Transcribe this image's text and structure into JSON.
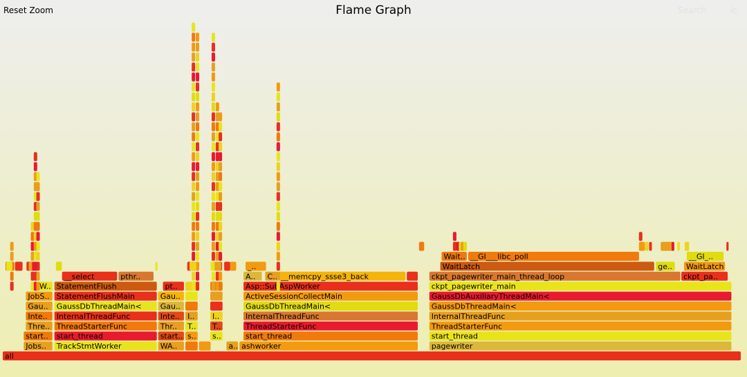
{
  "header": {
    "reset_zoom": "Reset Zoom",
    "title": "Flame Graph",
    "search": "Search",
    "ic": "ic"
  },
  "colors": {
    "bg_top": "#eeeeee",
    "bg_bottom": "#eeeeb0",
    "palette": [
      "#e8301c",
      "#f07a0c",
      "#e6a020",
      "#e8e41c",
      "#dcb83a",
      "#f29a10",
      "#e04a1a",
      "#eed21e",
      "#d87830",
      "#e0dc10",
      "#f5b40a",
      "#e81a30",
      "#cc5a10"
    ]
  },
  "chart_data": {
    "type": "flamegraph",
    "title": "Flame Graph",
    "unit": "fraction of total samples (x = start, w = width), depth 0 = bottom",
    "frames": [
      {
        "name": "all",
        "label": "all",
        "depth": 0,
        "x": 0.0,
        "w": 1.0,
        "c": 0
      },
      {
        "name": "JobScheduleWorker",
        "label": "Jobs..",
        "depth": 1,
        "x": 0.0284,
        "w": 0.0388,
        "c": 2
      },
      {
        "name": "TrackStmtWorker",
        "label": "TrackStmtWorker",
        "depth": 1,
        "x": 0.07,
        "w": 0.1387,
        "c": 3
      },
      {
        "name": "WALWriter",
        "label": "WA..",
        "depth": 1,
        "x": 0.2106,
        "w": 0.0349,
        "c": 2
      },
      {
        "name": "s",
        "label": "",
        "depth": 1,
        "x": 0.2475,
        "w": 0.0166,
        "c": 1
      },
      {
        "name": "s2",
        "label": "",
        "depth": 1,
        "x": 0.2659,
        "w": 0.0157,
        "c": 5
      },
      {
        "name": "a",
        "label": "a..",
        "depth": 1,
        "x": 0.3031,
        "w": 0.0157,
        "c": 2
      },
      {
        "name": "ashworker",
        "label": "ashworker",
        "depth": 1,
        "x": 0.3207,
        "w": 0.2416,
        "c": 5
      },
      {
        "name": "pagewriter",
        "label": "pagewriter",
        "depth": 1,
        "x": 0.578,
        "w": 0.4093,
        "c": 4
      },
      {
        "name": "start_thread_a",
        "label": "start..",
        "depth": 2,
        "x": 0.0284,
        "w": 0.0388,
        "c": 1
      },
      {
        "name": "start_thread_b",
        "label": "start_thread",
        "depth": 2,
        "x": 0.07,
        "w": 0.1387,
        "c": 11
      },
      {
        "name": "start_thread_c",
        "label": "start..",
        "depth": 2,
        "x": 0.2106,
        "w": 0.0349,
        "c": 6
      },
      {
        "name": "start_thread_d",
        "label": "s..",
        "depth": 2,
        "x": 0.2475,
        "w": 0.0166,
        "c": 5
      },
      {
        "name": "start_thread_e",
        "label": "s..",
        "depth": 2,
        "x": 0.2812,
        "w": 0.0166,
        "c": 3
      },
      {
        "name": "start_thread_f",
        "label": "start_thread",
        "depth": 2,
        "x": 0.3262,
        "w": 0.2361,
        "c": 1
      },
      {
        "name": "start_thread_g",
        "label": "start_thread",
        "depth": 2,
        "x": 0.578,
        "w": 0.4093,
        "c": 3
      },
      {
        "name": "ThreadStarterFunc_a",
        "label": "Thre..",
        "depth": 3,
        "x": 0.0313,
        "w": 0.0359,
        "c": 2
      },
      {
        "name": "ThreadStarterFunc_b",
        "label": "ThreadStarterFunc",
        "depth": 3,
        "x": 0.07,
        "w": 0.1387,
        "c": 1
      },
      {
        "name": "ThreadStarterFunc_c",
        "label": "Thr..",
        "depth": 3,
        "x": 0.2106,
        "w": 0.0349,
        "c": 2
      },
      {
        "name": "ThreadStarterFunc_d",
        "label": "T..",
        "depth": 3,
        "x": 0.2475,
        "w": 0.0166,
        "c": 3
      },
      {
        "name": "ThreadStarterFunc_e",
        "label": "T..",
        "depth": 3,
        "x": 0.2812,
        "w": 0.0166,
        "c": 6
      },
      {
        "name": "ThreadStarterFunc_f",
        "label": "ThreadStarterFunc",
        "depth": 3,
        "x": 0.3262,
        "w": 0.2361,
        "c": 11
      },
      {
        "name": "ThreadStarterFunc_g",
        "label": "ThreadStarterFunc",
        "depth": 3,
        "x": 0.578,
        "w": 0.4093,
        "c": 5
      },
      {
        "name": "InternalThreadFunc_a",
        "label": "Inte..",
        "depth": 4,
        "x": 0.0313,
        "w": 0.0359,
        "c": 1
      },
      {
        "name": "InternalThreadFunc_b",
        "label": "InternalThreadFunc",
        "depth": 4,
        "x": 0.07,
        "w": 0.1387,
        "c": 0
      },
      {
        "name": "InternalThreadFunc_c",
        "label": "Inte..",
        "depth": 4,
        "x": 0.2106,
        "w": 0.0349,
        "c": 6
      },
      {
        "name": "InternalThreadFunc_d",
        "label": "I..",
        "depth": 4,
        "x": 0.2475,
        "w": 0.0166,
        "c": 2
      },
      {
        "name": "InternalThreadFunc_e",
        "label": "I..",
        "depth": 4,
        "x": 0.2812,
        "w": 0.0166,
        "c": 7
      },
      {
        "name": "InternalThreadFunc_f",
        "label": "InternalThreadFunc",
        "depth": 4,
        "x": 0.3262,
        "w": 0.2361,
        "c": 8
      },
      {
        "name": "InternalThreadFunc_g",
        "label": "InternalThreadFunc",
        "depth": 4,
        "x": 0.578,
        "w": 0.4093,
        "c": 2
      },
      {
        "name": "GaussDbThreadMain_a",
        "label": "Gau..",
        "depth": 5,
        "x": 0.0313,
        "w": 0.0359,
        "c": 2
      },
      {
        "name": "GaussDbThreadMain_b",
        "label": "GaussDbThreadMain<",
        "depth": 5,
        "x": 0.07,
        "w": 0.1387,
        "c": 3
      },
      {
        "name": "GaussDbThreadMain_c",
        "label": "Gau..",
        "depth": 5,
        "x": 0.2106,
        "w": 0.0349,
        "c": 4
      },
      {
        "name": "GaussDbThreadMain_d",
        "label": "",
        "depth": 5,
        "x": 0.2475,
        "w": 0.0166,
        "c": 1
      },
      {
        "name": "GaussDbThreadMain_e",
        "label": "",
        "depth": 5,
        "x": 0.2812,
        "w": 0.0166,
        "c": 0
      },
      {
        "name": "GaussDbThreadMain_f",
        "label": "GaussDbThreadMain<",
        "depth": 5,
        "x": 0.3262,
        "w": 0.2361,
        "c": 9
      },
      {
        "name": "GaussDbThreadMain_g",
        "label": "GaussDbThreadMain<",
        "depth": 5,
        "x": 0.578,
        "w": 0.4093,
        "c": 5
      },
      {
        "name": "JobScheduleMain",
        "label": "JobS..",
        "depth": 6,
        "x": 0.0313,
        "w": 0.0359,
        "c": 5
      },
      {
        "name": "StatementFlushMain",
        "label": "StatementFlushMain",
        "depth": 6,
        "x": 0.07,
        "w": 0.1387,
        "c": 0
      },
      {
        "name": "WalWriterMain",
        "label": "Gau..",
        "depth": 6,
        "x": 0.2106,
        "w": 0.0349,
        "c": 10
      },
      {
        "name": "d6_s",
        "label": "",
        "depth": 6,
        "x": 0.2475,
        "w": 0.0166,
        "c": 3
      },
      {
        "name": "d6_t",
        "label": "",
        "depth": 6,
        "x": 0.2812,
        "w": 0.0166,
        "c": 2
      },
      {
        "name": "ActiveSessionCollectMain",
        "label": "ActiveSessionCollectMain",
        "depth": 6,
        "x": 0.3262,
        "w": 0.2361,
        "c": 5
      },
      {
        "name": "GaussDbAuxiliaryThreadMain",
        "label": "GaussDbAuxiliaryThreadMain<",
        "depth": 6,
        "x": 0.578,
        "w": 0.4093,
        "c": 11
      },
      {
        "name": "W",
        "label": "W..",
        "depth": 7,
        "x": 0.0469,
        "w": 0.0203,
        "c": 3
      },
      {
        "name": "StatementFlush",
        "label": "StatementFlush",
        "depth": 7,
        "x": 0.07,
        "w": 0.1387,
        "c": 12
      },
      {
        "name": "pt",
        "label": "pt..",
        "depth": 7,
        "x": 0.217,
        "w": 0.0285,
        "c": 0
      },
      {
        "name": "d7_a",
        "label": "",
        "depth": 7,
        "x": 0.2475,
        "w": 0.0166,
        "c": 7
      },
      {
        "name": "d7_b",
        "label": "",
        "depth": 7,
        "x": 0.2812,
        "w": 0.0166,
        "c": 1
      },
      {
        "name": "AspSubAspWorker",
        "label": "Asp::SubAspWorker",
        "depth": 7,
        "x": 0.3262,
        "w": 0.2361,
        "c": 0
      },
      {
        "name": "ckpt_pagewriter_main",
        "label": "ckpt_pagewriter_main",
        "depth": 7,
        "x": 0.578,
        "w": 0.4093,
        "c": 3
      },
      {
        "name": "__select",
        "label": "__select",
        "depth": 8,
        "x": 0.0803,
        "w": 0.0746,
        "c": 0
      },
      {
        "name": "pthr",
        "label": "pthr..",
        "depth": 8,
        "x": 0.1568,
        "w": 0.0475,
        "c": 8
      },
      {
        "name": "A",
        "label": "A..",
        "depth": 8,
        "x": 0.3262,
        "w": 0.0248,
        "c": 4
      },
      {
        "name": "C",
        "label": "C..",
        "depth": 8,
        "x": 0.3557,
        "w": 0.0165,
        "c": 2
      },
      {
        "name": "__memcpy_ssse3_back",
        "label": "__memcpy_ssse3_back",
        "depth": 8,
        "x": 0.374,
        "w": 0.1716,
        "c": 10
      },
      {
        "name": "d8_red",
        "label": "",
        "depth": 8,
        "x": 0.5475,
        "w": 0.0148,
        "c": 0
      },
      {
        "name": "ckpt_pagewriter_main_thread_loop",
        "label": "ckpt_pagewriter_main_thread_loop",
        "depth": 8,
        "x": 0.578,
        "w": 0.3402,
        "c": 8
      },
      {
        "name": "ckpt_pa",
        "label": "ckpt_pa..",
        "depth": 8,
        "x": 0.9194,
        "w": 0.0629,
        "c": 0
      },
      {
        "name": "underscore",
        "label": "_..",
        "depth": 9,
        "x": 0.329,
        "w": 0.0277,
        "c": 5
      },
      {
        "name": "WaitLatch_a",
        "label": "WaitLatch",
        "depth": 9,
        "x": 0.5928,
        "w": 0.2899,
        "c": 12
      },
      {
        "name": "ge",
        "label": "ge..",
        "depth": 9,
        "x": 0.885,
        "w": 0.0256,
        "c": 9
      },
      {
        "name": "WaitLatch_b",
        "label": "WaitLatch",
        "depth": 9,
        "x": 0.9231,
        "w": 0.0555,
        "c": 5
      },
      {
        "name": "Wait",
        "label": "Wait..",
        "depth": 10,
        "x": 0.5946,
        "w": 0.0341,
        "c": 1
      },
      {
        "name": "__GI___libc_poll",
        "label": "__GI___libc_poll",
        "depth": 10,
        "x": 0.6307,
        "w": 0.2314,
        "c": 1
      },
      {
        "name": "__GI",
        "label": "__GI_..",
        "depth": 10,
        "x": 0.9268,
        "w": 0.0499,
        "c": 9
      }
    ],
    "tiny_boxes": [
      [
        0.0037,
        0.012,
        1
      ],
      [
        0.0166,
        0.0102,
        0
      ],
      [
        0.0046,
        0.0084,
        3
      ],
      [
        0.0321,
        0.0102,
        0
      ],
      [
        0.0351,
        0.0074,
        2
      ],
      [
        0.0397,
        0.0074,
        11
      ],
      [
        0.072,
        0.008,
        9
      ],
      [
        0.2068,
        0.0028,
        3
      ],
      [
        0.25,
        0.012,
        0
      ],
      [
        0.253,
        0.0092,
        7
      ],
      [
        0.2815,
        0.012,
        3
      ],
      [
        0.287,
        0.0092,
        2
      ],
      [
        0.3,
        0.0083,
        0
      ],
      [
        0.308,
        0.0083,
        5
      ],
      [
        0.564,
        0.007,
        1
      ],
      [
        0.614,
        0.0055,
        11
      ],
      [
        0.618,
        0.005,
        3
      ],
      [
        0.6205,
        0.0048,
        2
      ],
      [
        0.624,
        0.005,
        9
      ],
      [
        0.864,
        0.006,
        5
      ],
      [
        0.8703,
        0.0046,
        7
      ],
      [
        0.8758,
        0.0037,
        0
      ],
      [
        0.8915,
        0.0185,
        2
      ],
      [
        0.9062,
        0.0037,
        11
      ],
      [
        0.9138,
        0.0037,
        3
      ],
      [
        0.924,
        0.006,
        7
      ],
      [
        0.9805,
        0.003,
        0
      ]
    ]
  }
}
